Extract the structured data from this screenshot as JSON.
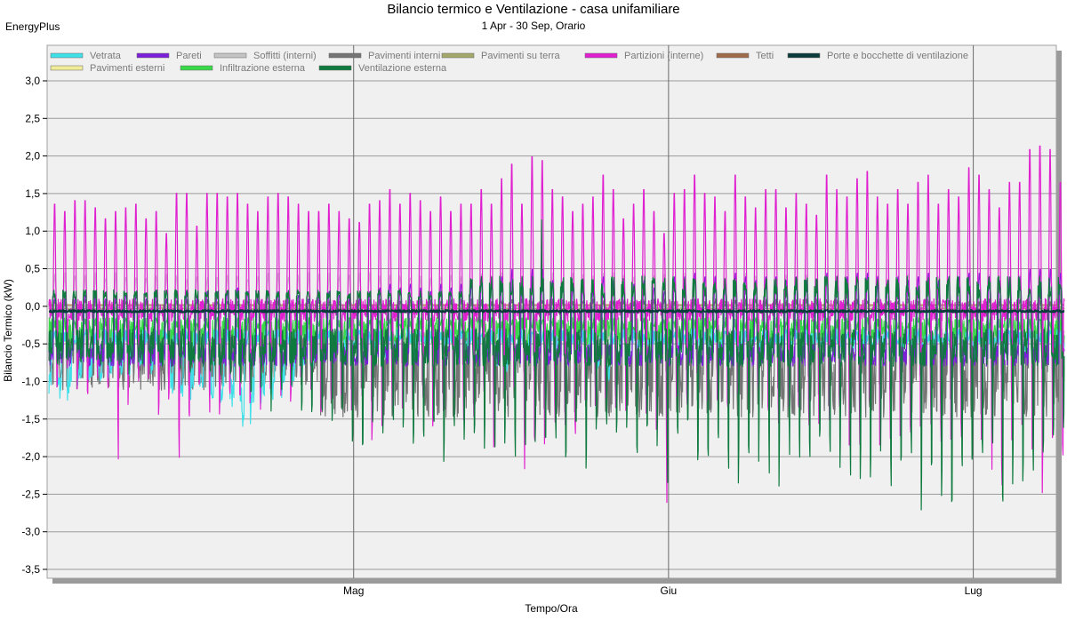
{
  "brand": "EnergyPlus",
  "chart_data": {
    "type": "line",
    "title": "Bilancio termico e Ventilazione - casa unifamiliare",
    "subtitle": "1 Apr - 30 Sep, Orario",
    "xlabel": "Tempo/Ora",
    "ylabel": "Bilancio Termico (kW)",
    "ylim": [
      -3.5,
      3.0
    ],
    "yticks": [
      "3,0",
      "2,5",
      "2,0",
      "1,5",
      "1,0",
      "0,5",
      "0,0",
      "-0,5",
      "-1,0",
      "-1,5",
      "-2,0",
      "-2,5",
      "-3,0",
      "-3,5"
    ],
    "ytick_values": [
      3.0,
      2.5,
      2.0,
      1.5,
      1.0,
      0.5,
      0.0,
      -0.5,
      -1.0,
      -1.5,
      -2.0,
      -2.5,
      -3.0,
      -3.5
    ],
    "x_range_days": [
      0,
      99
    ],
    "xticks": [
      {
        "label": "Mag",
        "day": 30
      },
      {
        "label": "Giu",
        "day": 61
      },
      {
        "label": "Lug",
        "day": 91
      }
    ],
    "grid": true,
    "legend_position": "top",
    "series": [
      {
        "name": "Vetrata",
        "color": "#3fe0e8",
        "kind": "glazing"
      },
      {
        "name": "Pareti",
        "color": "#7b20d8",
        "kind": "walls"
      },
      {
        "name": "Soffitti (interni)",
        "color": "#c4c4c4",
        "kind": "ceilings"
      },
      {
        "name": "Pavimenti interni",
        "color": "#747474",
        "kind": "floors_int"
      },
      {
        "name": "Pavimenti su terra",
        "color": "#a3a86a",
        "kind": "ground"
      },
      {
        "name": "Partizioni (interne)",
        "color": "#e020d0",
        "kind": "partitions"
      },
      {
        "name": "Tetti",
        "color": "#a06a4a",
        "kind": "roofs"
      },
      {
        "name": "Porte e bocchette di ventilazione",
        "color": "#0a3a3a",
        "kind": "doors"
      },
      {
        "name": "Pavimenti esterni",
        "color": "#f0ec9a",
        "kind": "floors_ext"
      },
      {
        "name": "Infiltrazione esterna",
        "color": "#38d848",
        "kind": "infiltration"
      },
      {
        "name": "Ventilazione esterna",
        "color": "#0e7a3e",
        "kind": "ventilation"
      }
    ],
    "daily_peaks": {
      "partitions_max": [
        1.4,
        1.3,
        1.45,
        1.45,
        1.35,
        1.2,
        1.3,
        1.35,
        1.4,
        1.2,
        1.3,
        1.0,
        1.55,
        1.55,
        1.1,
        1.55,
        1.55,
        1.5,
        1.55,
        1.4,
        1.3,
        1.5,
        1.55,
        1.5,
        1.4,
        1.3,
        1.3,
        1.4,
        1.3,
        1.2,
        1.15,
        1.4,
        1.45,
        1.6,
        1.4,
        1.55,
        1.45,
        1.3,
        1.5,
        1.3,
        1.4,
        1.4,
        1.6,
        1.4,
        1.75,
        1.95,
        1.4,
        2.05,
        2.0,
        1.6,
        1.5,
        1.3,
        1.4,
        1.5,
        1.8,
        1.6,
        1.2,
        1.4,
        1.6,
        1.3,
        1.0,
        1.55,
        1.6,
        1.8,
        1.55,
        1.5,
        1.3,
        1.8,
        1.5,
        1.35,
        1.6,
        1.6,
        1.35,
        1.55,
        1.4,
        1.25,
        1.8,
        1.6,
        1.5,
        1.75,
        1.85,
        1.5,
        1.4,
        1.6,
        1.4,
        1.7,
        1.8,
        1.4,
        1.6,
        1.5,
        1.9,
        1.8,
        1.6,
        1.35,
        1.7,
        1.7,
        2.15,
        2.2,
        2.15,
        1.7
      ],
      "partitions_min": [
        -1.2,
        -1.0,
        -1.1,
        -1.2,
        -1.0,
        -1.3,
        -2.05,
        -1.4,
        -1.1,
        -1.2,
        -1.5,
        -1.4,
        -2.05,
        -1.8,
        -1.3,
        -1.7,
        -1.5,
        -1.6,
        -1.2,
        -1.3,
        -1.4,
        -1.1,
        -1.2,
        -1.3,
        -1.3,
        -1.5,
        -1.6,
        -1.7,
        -1.6,
        -1.4,
        -1.2,
        -1.9,
        -1.6,
        -1.6,
        -1.4,
        -1.3,
        -1.3,
        -1.7,
        -1.5,
        -1.4,
        -1.6,
        -1.7,
        -1.3,
        -2.1,
        -1.4,
        -1.6,
        -2.25,
        -1.8,
        -1.9,
        -1.7,
        -2.1,
        -2.0,
        -1.9,
        -1.5,
        -1.6,
        -1.4,
        -1.6,
        -1.3,
        -1.7,
        -2.0,
        -2.7,
        -1.4,
        -1.6,
        -1.4,
        -1.7,
        -1.6,
        -1.9,
        -1.6,
        -1.4,
        -1.5,
        -1.6,
        -1.8,
        -1.4,
        -1.7,
        -1.6,
        -1.7,
        -1.6,
        -1.8,
        -1.9,
        -2.1,
        -1.7,
        -1.9,
        -1.8,
        -1.9,
        -1.7,
        -2.0,
        -1.8,
        -1.9,
        -2.0,
        -1.8,
        -1.6,
        -2.0,
        -2.2,
        -2.4,
        -2.0,
        -1.8,
        -2.1,
        -2.5,
        -2.2,
        -2.0
      ],
      "ventilation_min": [
        -0.5,
        -0.6,
        -0.6,
        -0.7,
        -0.7,
        -0.6,
        -0.8,
        -0.9,
        -0.7,
        -0.8,
        -0.8,
        -0.7,
        -0.9,
        -1.0,
        -0.9,
        -1.0,
        -1.1,
        -0.9,
        -1.1,
        -1.3,
        -1.2,
        -1.4,
        -1.3,
        -1.2,
        -1.4,
        -1.5,
        -1.6,
        -1.6,
        -1.8,
        -2.0,
        -2.3,
        -1.9,
        -1.7,
        -1.9,
        -2.0,
        -1.9,
        -1.8,
        -2.0,
        -2.1,
        -1.9,
        -2.1,
        -2.0,
        -2.2,
        -2.0,
        -2.1,
        -2.1,
        -2.2,
        -2.0,
        -2.2,
        -2.1,
        -2.1,
        -1.9,
        -2.2,
        -2.0,
        -1.8,
        -2.1,
        -1.9,
        -2.0,
        -1.9,
        -2.0,
        -2.4,
        -2.2,
        -2.0,
        -2.1,
        -2.0,
        -2.3,
        -2.2,
        -2.4,
        -2.0,
        -2.1,
        -2.3,
        -2.4,
        -2.0,
        -2.2,
        -2.5,
        -2.3,
        -2.1,
        -2.4,
        -2.3,
        -2.5,
        -2.3,
        -2.0,
        -2.4,
        -2.6,
        -2.2,
        -3.0,
        -2.7,
        -2.6,
        -2.8,
        -2.5,
        -2.7,
        -2.4,
        -2.3,
        -2.6,
        -2.55,
        -2.4,
        -2.3,
        -2.2,
        -2.1,
        -2.0
      ],
      "walls_max": [
        0.1,
        0.1,
        0.1,
        0.15,
        0.15,
        0.1,
        0.1,
        0.15,
        0.15,
        0.1,
        0.15,
        0.1,
        0.2,
        0.2,
        0.1,
        0.2,
        0.2,
        0.2,
        0.25,
        0.2,
        0.15,
        0.2,
        0.2,
        0.2,
        0.15,
        0.1,
        0.15,
        0.2,
        0.15,
        0.1,
        0.1,
        0.2,
        0.25,
        0.3,
        0.25,
        0.3,
        0.25,
        0.2,
        0.3,
        0.25,
        0.3,
        0.3,
        0.35,
        0.3,
        0.4,
        0.5,
        0.3,
        0.5,
        0.5,
        0.35,
        0.3,
        0.25,
        0.3,
        0.3,
        0.4,
        0.35,
        0.25,
        0.3,
        0.35,
        0.25,
        0.2,
        0.4,
        0.4,
        0.45,
        0.4,
        0.4,
        0.3,
        0.45,
        0.4,
        0.35,
        0.4,
        0.4,
        0.35,
        0.4,
        0.35,
        0.3,
        0.45,
        0.4,
        0.4,
        0.45,
        0.45,
        0.4,
        0.35,
        0.4,
        0.35,
        0.4,
        0.45,
        0.35,
        0.4,
        0.4,
        0.45,
        0.45,
        0.4,
        0.35,
        0.4,
        0.4,
        0.5,
        0.5,
        0.5,
        0.45
      ],
      "glazing_min": [
        -1.2,
        -1.25,
        -1.1,
        -1.0,
        -0.95,
        -1.0,
        -0.9,
        -1.0,
        -0.85,
        -0.8,
        -0.9,
        -0.8,
        -1.2,
        -1.3,
        -1.1,
        -1.2,
        -1.3,
        -1.25,
        -1.4,
        -1.6,
        -1.3,
        -1.2,
        -1.3,
        -1.1,
        -1.0,
        -0.9,
        -0.8,
        -0.75,
        -0.7,
        -0.6,
        -0.6,
        -0.65,
        -0.6,
        -0.7,
        -0.65,
        -0.7,
        -0.6,
        -0.55,
        -0.6,
        -0.55,
        -0.6,
        -0.65,
        -0.6,
        -0.7,
        -0.8,
        -0.9,
        -0.6,
        -0.7,
        -0.75,
        -0.6,
        -0.55,
        -0.6,
        -0.65,
        -0.7,
        -0.9,
        -1.0,
        -0.8,
        -0.7,
        -0.6,
        -0.55,
        -0.6,
        -0.65,
        -0.6,
        -0.55,
        -0.6,
        -0.55,
        -0.6,
        -0.65,
        -0.6,
        -0.55,
        -0.6,
        -0.6,
        -0.55,
        -0.6,
        -0.55,
        -0.5,
        -0.6,
        -0.55,
        -0.6,
        -0.6,
        -0.65,
        -0.6,
        -0.55,
        -0.6,
        -0.55,
        -0.6,
        -0.65,
        -0.55,
        -0.6,
        -0.6,
        -0.65,
        -0.7,
        -0.6,
        -0.55,
        -0.6,
        -0.6,
        -0.65,
        -0.7,
        -0.65,
        -0.6
      ]
    }
  }
}
